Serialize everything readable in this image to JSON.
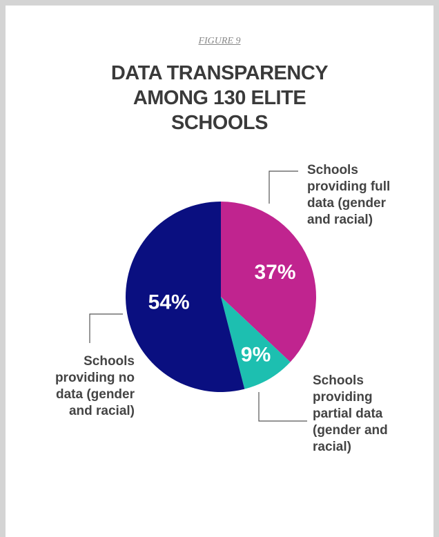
{
  "chart_data": {
    "type": "pie",
    "subtitle": "FIGURE 9",
    "title": "DATA TRANSPARENCY AMONG 130 ELITE SCHOOLS",
    "categories": [
      "Schools providing full data (gender and racial)",
      "Schools providing partial data (gender and racial)",
      "Schools providing no data (gender and racial)"
    ],
    "values": [
      37,
      9,
      54
    ],
    "value_labels": [
      "37%",
      "9%",
      "54%"
    ],
    "colors": [
      "#c0248f",
      "#1dbfb0",
      "#0a0f80"
    ]
  }
}
